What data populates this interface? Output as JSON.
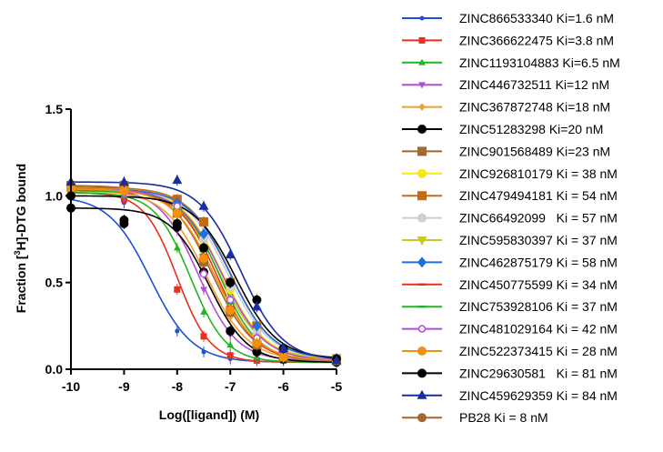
{
  "chart_data": {
    "type": "scatter",
    "xlabel": "Log([ligand]) (M)",
    "ylabel_parts": {
      "prefix": "Fraction [",
      "sup": "3",
      "suffix": "H]-DTG bound"
    },
    "xlim": [
      -10,
      -5
    ],
    "ylim": [
      0,
      1.5
    ],
    "xticks": [
      -10,
      -9,
      -8,
      -7,
      -6,
      -5
    ],
    "xtick_labels": [
      "-10",
      "-9",
      "-8",
      "-7",
      "-6",
      "-5"
    ],
    "yticks": [
      0,
      0.5,
      1.0,
      1.5
    ],
    "ytick_labels": [
      "0.0",
      "0.5",
      "1.0",
      "1.5"
    ],
    "x": [
      -10,
      -9,
      -8,
      -7.5,
      -7,
      -6.5,
      -6,
      -5
    ],
    "series": [
      {
        "name": "ZINC866533340 Ki=1.6 nM",
        "color": "#1f4fd6",
        "marker": "circle",
        "size": 2.5,
        "curve": {
          "top": 1.0,
          "bottom": 0.04,
          "ic50": -8.5,
          "hill": 1.1
        },
        "values": [
          1.0,
          0.96,
          0.22,
          0.1,
          0.06,
          0.05,
          0.05,
          0.04
        ]
      },
      {
        "name": "ZINC366622475 Ki=3.8 nM",
        "color": "#e8301c",
        "marker": "square",
        "size": 3.5,
        "curve": {
          "top": 1.02,
          "bottom": 0.04,
          "ic50": -8.0,
          "hill": 1.4
        },
        "values": [
          1.03,
          0.98,
          0.46,
          0.19,
          0.08,
          0.05,
          0.05,
          0.04
        ]
      },
      {
        "name": "ZINC1193104883 Ki=6.5 nM",
        "color": "#22b522",
        "marker": "triangle-up",
        "size": 3.5,
        "curve": {
          "top": 1.02,
          "bottom": 0.04,
          "ic50": -7.75,
          "hill": 1.3
        },
        "values": [
          1.02,
          1.0,
          0.7,
          0.33,
          0.14,
          0.07,
          0.05,
          0.04
        ]
      },
      {
        "name": "ZINC446732511 Ki=12 nM",
        "color": "#b04fd6",
        "marker": "triangle-down",
        "size": 3.5,
        "curve": {
          "top": 1.04,
          "bottom": 0.05,
          "ic50": -7.6,
          "hill": 1.2
        },
        "values": [
          1.04,
          1.0,
          0.8,
          0.46,
          0.2,
          0.09,
          0.06,
          0.05
        ]
      },
      {
        "name": "ZINC367872748 Ki=18 nM",
        "color": "#f0a030",
        "marker": "diamond",
        "size": 3.5,
        "curve": {
          "top": 1.03,
          "bottom": 0.05,
          "ic50": -7.45,
          "hill": 1.1
        },
        "values": [
          1.03,
          1.02,
          0.85,
          0.6,
          0.3,
          0.12,
          0.07,
          0.05
        ]
      },
      {
        "name": "ZINC51283298 Ki=20 nM",
        "color": "#000000",
        "marker": "circle",
        "size": 5,
        "curve": {
          "top": 0.93,
          "bottom": 0.04,
          "ic50": -7.4,
          "hill": 1.2
        },
        "values": [
          0.93,
          0.84,
          0.82,
          0.56,
          0.22,
          0.1,
          0.06,
          0.04
        ]
      },
      {
        "name": "ZINC901568489 Ki=23 nM",
        "color": "#a0692e",
        "marker": "square",
        "size": 5,
        "curve": {
          "top": 1.06,
          "bottom": 0.05,
          "ic50": -7.35,
          "hill": 1.1
        },
        "values": [
          1.06,
          1.05,
          0.9,
          0.62,
          0.33,
          0.14,
          0.07,
          0.05
        ]
      },
      {
        "name": "ZINC926810179 Ki = 38 nM",
        "color": "#f5e614",
        "marker": "circle",
        "size": 5,
        "curve": {
          "top": 1.05,
          "bottom": 0.06,
          "ic50": -7.15,
          "hill": 1.1
        },
        "values": [
          1.05,
          1.04,
          0.95,
          0.72,
          0.46,
          0.2,
          0.1,
          0.06
        ]
      },
      {
        "name": "ZINC479494181 Ki = 54 nM",
        "color": "#c46a14",
        "marker": "square",
        "size": 5,
        "curve": {
          "top": 1.05,
          "bottom": 0.06,
          "ic50": -7.0,
          "hill": 1.1
        },
        "values": [
          1.05,
          1.06,
          0.98,
          0.85,
          0.5,
          0.25,
          0.1,
          0.06
        ]
      },
      {
        "name": "ZINC66492099   Ki = 57 nM",
        "color": "#cfcfcf",
        "marker": "circle",
        "size": 5,
        "curve": {
          "top": 1.04,
          "bottom": 0.06,
          "ic50": -7.05,
          "hill": 1.1
        },
        "values": [
          1.04,
          1.03,
          0.95,
          0.75,
          0.48,
          0.22,
          0.1,
          0.06
        ]
      },
      {
        "name": "ZINC595830397 Ki = 37 nM",
        "color": "#c8c828",
        "marker": "triangle-down",
        "size": 5,
        "curve": {
          "top": 1.04,
          "bottom": 0.06,
          "ic50": -7.2,
          "hill": 1.1
        },
        "values": [
          1.04,
          1.02,
          0.92,
          0.7,
          0.4,
          0.18,
          0.08,
          0.06
        ]
      },
      {
        "name": "ZINC462875179 Ki = 58 nM",
        "color": "#1f6fe0",
        "marker": "diamond",
        "size": 5,
        "curve": {
          "top": 1.04,
          "bottom": 0.06,
          "ic50": -7.0,
          "hill": 1.1
        },
        "values": [
          1.04,
          1.03,
          0.96,
          0.78,
          0.5,
          0.25,
          0.1,
          0.06
        ]
      },
      {
        "name": "ZINC450775599 Ki = 34 nM",
        "color": "#e8301c",
        "marker": "dash",
        "size": 5,
        "curve": {
          "top": 1.03,
          "bottom": 0.05,
          "ic50": -7.25,
          "hill": 1.2
        },
        "values": [
          1.03,
          1.02,
          0.9,
          0.66,
          0.36,
          0.15,
          0.07,
          0.05
        ]
      },
      {
        "name": "ZINC753928106 Ki = 37 nM",
        "color": "#22b522",
        "marker": "dash",
        "size": 5,
        "curve": {
          "top": 1.03,
          "bottom": 0.05,
          "ic50": -7.2,
          "hill": 1.2
        },
        "values": [
          1.03,
          1.03,
          0.92,
          0.68,
          0.38,
          0.16,
          0.07,
          0.05
        ]
      },
      {
        "name": "ZINC481029164 Ki = 42 nM",
        "color": "#b04fd6",
        "marker": "open-circle",
        "size": 3.5,
        "curve": {
          "top": 1.04,
          "bottom": 0.05,
          "ic50": -7.15,
          "hill": 1.1
        },
        "values": [
          1.04,
          1.02,
          0.94,
          0.55,
          0.4,
          0.18,
          0.08,
          0.05
        ]
      },
      {
        "name": "ZINC522373415 Ki = 28 nM",
        "color": "#f5900a",
        "marker": "circle",
        "size": 5,
        "curve": {
          "top": 1.04,
          "bottom": 0.05,
          "ic50": -7.3,
          "hill": 1.1
        },
        "values": [
          1.04,
          1.03,
          0.9,
          0.64,
          0.34,
          0.15,
          0.07,
          0.05
        ]
      },
      {
        "name": "ZINC29630581   Ki = 81 nM",
        "color": "#000000",
        "marker": "circle",
        "size": 5,
        "curve": {
          "top": 1.0,
          "bottom": 0.06,
          "ic50": -6.9,
          "hill": 1.1
        },
        "values": [
          1.0,
          0.86,
          0.84,
          0.7,
          0.5,
          0.4,
          0.12,
          0.06
        ]
      },
      {
        "name": "ZINC459629359 Ki = 84 nM",
        "color": "#1a2ea0",
        "marker": "triangle-up",
        "size": 5,
        "curve": {
          "top": 1.08,
          "bottom": 0.05,
          "ic50": -6.8,
          "hill": 1.1
        },
        "values": [
          1.08,
          1.08,
          1.09,
          0.94,
          0.66,
          0.36,
          0.12,
          0.05
        ]
      },
      {
        "name": "PB28 Ki = 8 nM",
        "color": "#a0692e",
        "marker": "circle",
        "size": 5,
        "curve": null,
        "values": []
      }
    ]
  }
}
